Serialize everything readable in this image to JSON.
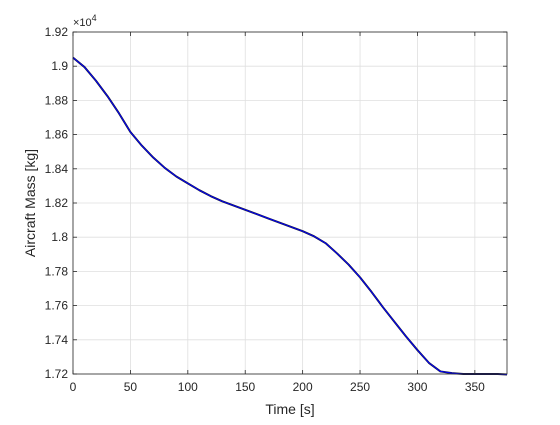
{
  "chart_data": {
    "type": "line",
    "title": "",
    "xlabel": "Time [s]",
    "ylabel": "Aircraft Mass [kg]",
    "y_exponent_label": "×10",
    "y_exponent_power": "4",
    "xlim": [
      0,
      378
    ],
    "ylim": [
      1.72,
      1.92
    ],
    "x_ticks": [
      0,
      50,
      100,
      150,
      200,
      250,
      300,
      350
    ],
    "y_ticks": [
      1.72,
      1.74,
      1.76,
      1.78,
      1.8,
      1.82,
      1.84,
      1.86,
      1.88,
      1.9,
      1.92
    ],
    "x_tick_labels": [
      "0",
      "50",
      "100",
      "150",
      "200",
      "250",
      "300",
      "350"
    ],
    "y_tick_labels": [
      "1.72",
      "1.74",
      "1.76",
      "1.78",
      "1.8",
      "1.82",
      "1.84",
      "1.86",
      "1.88",
      "1.9",
      "1.92"
    ],
    "grid": true,
    "series": [
      {
        "color": "#0000ff",
        "x": [
          0,
          10,
          20,
          30,
          40,
          50,
          60,
          70,
          80,
          90,
          100,
          110,
          120,
          130,
          140,
          150,
          160,
          170,
          180,
          190,
          200,
          210,
          220,
          230,
          240,
          250,
          260,
          270,
          280,
          290,
          300,
          310,
          320,
          330,
          340,
          350,
          360,
          370,
          378
        ],
        "y": [
          1.905,
          1.8995,
          1.8915,
          1.8825,
          1.8725,
          1.8615,
          1.8535,
          1.8465,
          1.8405,
          1.8355,
          1.8315,
          1.8275,
          1.824,
          1.821,
          1.8185,
          1.816,
          1.8135,
          1.811,
          1.8085,
          1.806,
          1.8035,
          1.8005,
          1.7965,
          1.7905,
          1.784,
          1.7765,
          1.768,
          1.759,
          1.7505,
          1.742,
          1.734,
          1.7265,
          1.7215,
          1.7205,
          1.72,
          1.72,
          1.72,
          1.72,
          1.7197
        ]
      }
    ]
  }
}
